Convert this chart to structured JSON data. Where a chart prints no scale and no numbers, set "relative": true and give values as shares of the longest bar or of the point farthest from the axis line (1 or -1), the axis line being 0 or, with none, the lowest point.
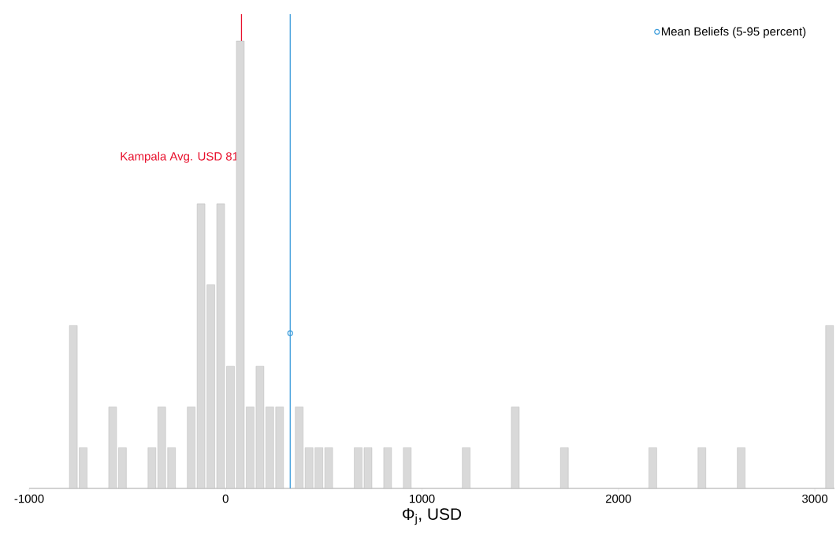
{
  "chart_data": {
    "type": "bar",
    "relative": true,
    "xlabel": "Φ$_{j}$, USD",
    "xlim": [
      -1000,
      3100
    ],
    "xticks": [
      -1000,
      0,
      1000,
      2000,
      3000
    ],
    "grid": false,
    "legend": "top right",
    "marker": "circle",
    "series": [
      {
        "color": "#d9d9d9",
        "x": [
          -775,
          -725,
          -575,
          -525,
          -375,
          -325,
          -275,
          -175,
          -125,
          -75,
          -25,
          25,
          75,
          125,
          175,
          225,
          275,
          375,
          425,
          475,
          525,
          675,
          725,
          825,
          925,
          1225,
          1475,
          1725,
          2175,
          2425,
          2625,
          3075
        ],
        "values": [
          0.364,
          0.091,
          0.182,
          0.091,
          0.091,
          0.182,
          0.091,
          0.182,
          0.636,
          0.455,
          0.636,
          0.273,
          1,
          0.182,
          0.273,
          0.182,
          0.182,
          0.182,
          0.091,
          0.091,
          0.091,
          0.091,
          0.091,
          0.091,
          0.091,
          0.091,
          0.182,
          0.091,
          0.091,
          0.091,
          0.091,
          0.364
        ]
      },
      {
        "type": "scatter",
        "name": "Mean Beliefs (5-95 percent)",
        "color": "#3b9cdb",
        "x": [
          329
        ],
        "values": [
          0.347
        ]
      }
    ],
    "ref_lines": [
      {
        "axis": "x",
        "value": 81,
        "label": "Kampala Avg. USD 81",
        "color": "#e8112d"
      },
      {
        "axis": "x",
        "value": 329,
        "color": "#3b9cdb"
      }
    ]
  }
}
